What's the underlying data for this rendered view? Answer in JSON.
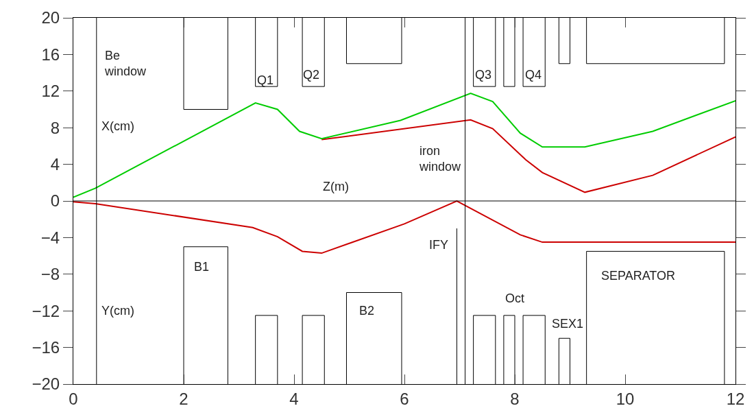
{
  "chart_data": {
    "type": "line",
    "xlim": [
      0,
      12
    ],
    "xticks": [
      0,
      2,
      4,
      6,
      8,
      10,
      12
    ],
    "ylim": [
      -20,
      20
    ],
    "yticks": [
      -20,
      -16,
      -12,
      -8,
      -4,
      0,
      4,
      8,
      12,
      16,
      20
    ],
    "marker": "none",
    "line_style": "solid",
    "ref_lines": [
      {
        "axis": "y",
        "value": 0,
        "color": "#000000"
      }
    ],
    "series": [
      {
        "color": "#cc0000",
        "x": [
          4.5,
          7.2,
          7.6,
          8.2,
          8.5,
          9.27,
          10.5,
          12
        ],
        "values": [
          6.7,
          8.85,
          7.9,
          4.5,
          3.1,
          0.95,
          2.8,
          7.0
        ]
      },
      {
        "color": "#00cc00",
        "x": [
          0,
          0.4,
          3.3,
          3.7,
          4.1,
          4.5,
          5.93,
          7.2,
          7.6,
          8.1,
          8.5,
          9.27,
          10.5,
          12
        ],
        "values": [
          0.4,
          1.4,
          10.7,
          10.0,
          7.6,
          6.8,
          8.8,
          11.75,
          10.85,
          7.4,
          5.9,
          5.9,
          7.6,
          10.95
        ]
      },
      {
        "color": "#cc0000",
        "x": [
          0,
          0.4,
          3.25,
          3.7,
          4.15,
          4.5,
          6.0,
          6.95,
          8.1,
          8.5,
          12
        ],
        "values": [
          -0.1,
          -0.3,
          -2.9,
          -3.9,
          -5.5,
          -5.7,
          -2.5,
          0,
          -3.7,
          -4.5,
          -4.5
        ]
      },
      {
        "color": "#000000",
        "x": [
          0.42,
          0.42
        ],
        "values": [
          -20,
          20
        ]
      },
      {
        "color": "#000000",
        "x": [
          7.1,
          7.1
        ],
        "values": [
          -20,
          20
        ]
      },
      {
        "color": "#000000",
        "x": [
          6.95,
          6.95
        ],
        "values": [
          -20,
          -3
        ]
      },
      {
        "color": "#000000",
        "x": [
          2.0,
          2.0,
          2.8,
          2.8
        ],
        "values": [
          20,
          10,
          10,
          20
        ]
      },
      {
        "color": "#000000",
        "x": [
          3.3,
          3.3,
          3.7,
          3.7
        ],
        "values": [
          20,
          12.5,
          12.5,
          20
        ]
      },
      {
        "color": "#000000",
        "x": [
          4.15,
          4.15,
          4.55,
          4.55
        ],
        "values": [
          20,
          12.5,
          12.5,
          20
        ]
      },
      {
        "color": "#000000",
        "x": [
          4.95,
          4.95,
          5.95,
          5.95
        ],
        "values": [
          20,
          15,
          15,
          20
        ]
      },
      {
        "color": "#000000",
        "x": [
          7.25,
          7.25,
          7.65,
          7.65
        ],
        "values": [
          20,
          12.5,
          12.5,
          20
        ]
      },
      {
        "color": "#000000",
        "x": [
          7.8,
          7.8,
          8.0,
          8.0
        ],
        "values": [
          20,
          12.5,
          12.5,
          20
        ]
      },
      {
        "color": "#000000",
        "x": [
          8.15,
          8.15,
          8.55,
          8.55
        ],
        "values": [
          20,
          12.5,
          12.5,
          20
        ]
      },
      {
        "color": "#000000",
        "x": [
          8.8,
          8.8,
          9.0,
          9.0
        ],
        "values": [
          20,
          15,
          15,
          20
        ]
      },
      {
        "color": "#000000",
        "x": [
          9.3,
          9.3,
          11.8,
          11.8
        ],
        "values": [
          20,
          15,
          15,
          20
        ]
      },
      {
        "color": "#000000",
        "x": [
          2.0,
          2.0,
          2.8,
          2.8
        ],
        "values": [
          -20,
          -5,
          -5,
          -20
        ]
      },
      {
        "color": "#000000",
        "x": [
          3.3,
          3.3,
          3.7,
          3.7
        ],
        "values": [
          -20,
          -12.5,
          -12.5,
          -20
        ]
      },
      {
        "color": "#000000",
        "x": [
          4.15,
          4.15,
          4.55,
          4.55
        ],
        "values": [
          -20,
          -12.5,
          -12.5,
          -20
        ]
      },
      {
        "color": "#000000",
        "x": [
          4.95,
          4.95,
          5.95,
          5.95
        ],
        "values": [
          -20,
          -10,
          -10,
          -20
        ]
      },
      {
        "color": "#000000",
        "x": [
          7.25,
          7.25,
          7.65,
          7.65
        ],
        "values": [
          -20,
          -12.5,
          -12.5,
          -20
        ]
      },
      {
        "color": "#000000",
        "x": [
          7.8,
          7.8,
          8.0,
          8.0
        ],
        "values": [
          -20,
          -12.5,
          -12.5,
          -20
        ]
      },
      {
        "color": "#000000",
        "x": [
          8.15,
          8.15,
          8.55,
          8.55
        ],
        "values": [
          -20,
          -12.5,
          -12.5,
          -20
        ]
      },
      {
        "color": "#000000",
        "x": [
          8.8,
          8.8,
          9.0,
          9.0
        ],
        "values": [
          -20,
          -15,
          -15,
          -20
        ]
      },
      {
        "color": "#000000",
        "x": [
          9.3,
          9.3,
          11.8,
          11.8
        ],
        "values": [
          -20,
          -5.5,
          -5.5,
          -20
        ]
      }
    ],
    "annotations": [
      "Be\nwindow",
      "Q1",
      "Q2",
      "Q3",
      "Q4",
      "X(cm)",
      "Z(m)",
      "iron\nwindow",
      "B1",
      "IFY",
      "B2",
      "Y(cm)",
      "SEPARATOR",
      "Oct",
      "SEX1"
    ]
  }
}
